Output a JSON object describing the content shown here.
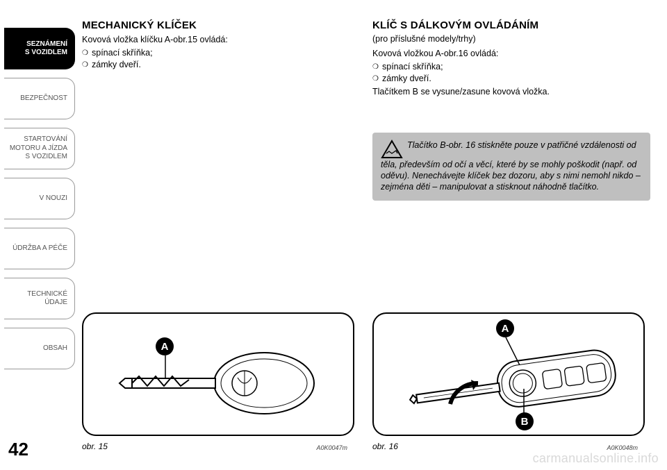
{
  "page_number": "42",
  "sidebar": {
    "tabs": [
      {
        "label": "SEZNÁMENÍ\nS VOZIDLEM",
        "active": true
      },
      {
        "label": "BEZPEČNOST",
        "active": false
      },
      {
        "label": "STARTOVÁNÍ\nMOTORU A JÍZDA\nS VOZIDLEM",
        "active": false
      },
      {
        "label": "V NOUZI",
        "active": false
      },
      {
        "label": "ÚDRŽBA A PÉČE",
        "active": false
      },
      {
        "label": "TECHNICKÉ\nÚDAJE",
        "active": false
      },
      {
        "label": "OBSAH",
        "active": false
      }
    ]
  },
  "left": {
    "heading": "MECHANICKÝ KLÍČEK",
    "intro": "Kovová vložka klíčku A-obr.15 ovládá:",
    "bullets": [
      "spínací skříňka;",
      "zámky dveří."
    ],
    "figure": {
      "caption": "obr. 15",
      "code": "A0K0047m",
      "labels": {
        "A": "A"
      }
    }
  },
  "right": {
    "heading": "KLÍČ S DÁLKOVÝM OVLÁDÁNÍM",
    "subhead": "(pro příslušné modely/trhy)",
    "intro": "Kovová vložkou A-obr.16 ovládá:",
    "bullets": [
      "spínací skříňka;",
      "zámky dveří."
    ],
    "line2": "Tlačítkem B se vysune/zasune kovová vložka.",
    "warning": "Tlačítko B-obr. 16 stiskněte pouze v patřičné vzdálenosti od těla, především od očí a věcí, které by se mohly poškodit (např. od oděvu). Nenechávejte klíček bez dozoru, aby s nimi nemohl nikdo – zejména děti – manipulovat a stisknout náhodně tlačítko.",
    "figure": {
      "caption": "obr. 16",
      "code": "A0K0048m",
      "labels": {
        "A": "A",
        "B": "B"
      }
    }
  },
  "watermark": "carmanualsonline.info",
  "colors": {
    "tab_active_bg": "#000000",
    "tab_border": "#999999",
    "warn_bg": "#bfbfbf",
    "watermark": "#d9d9d9"
  }
}
